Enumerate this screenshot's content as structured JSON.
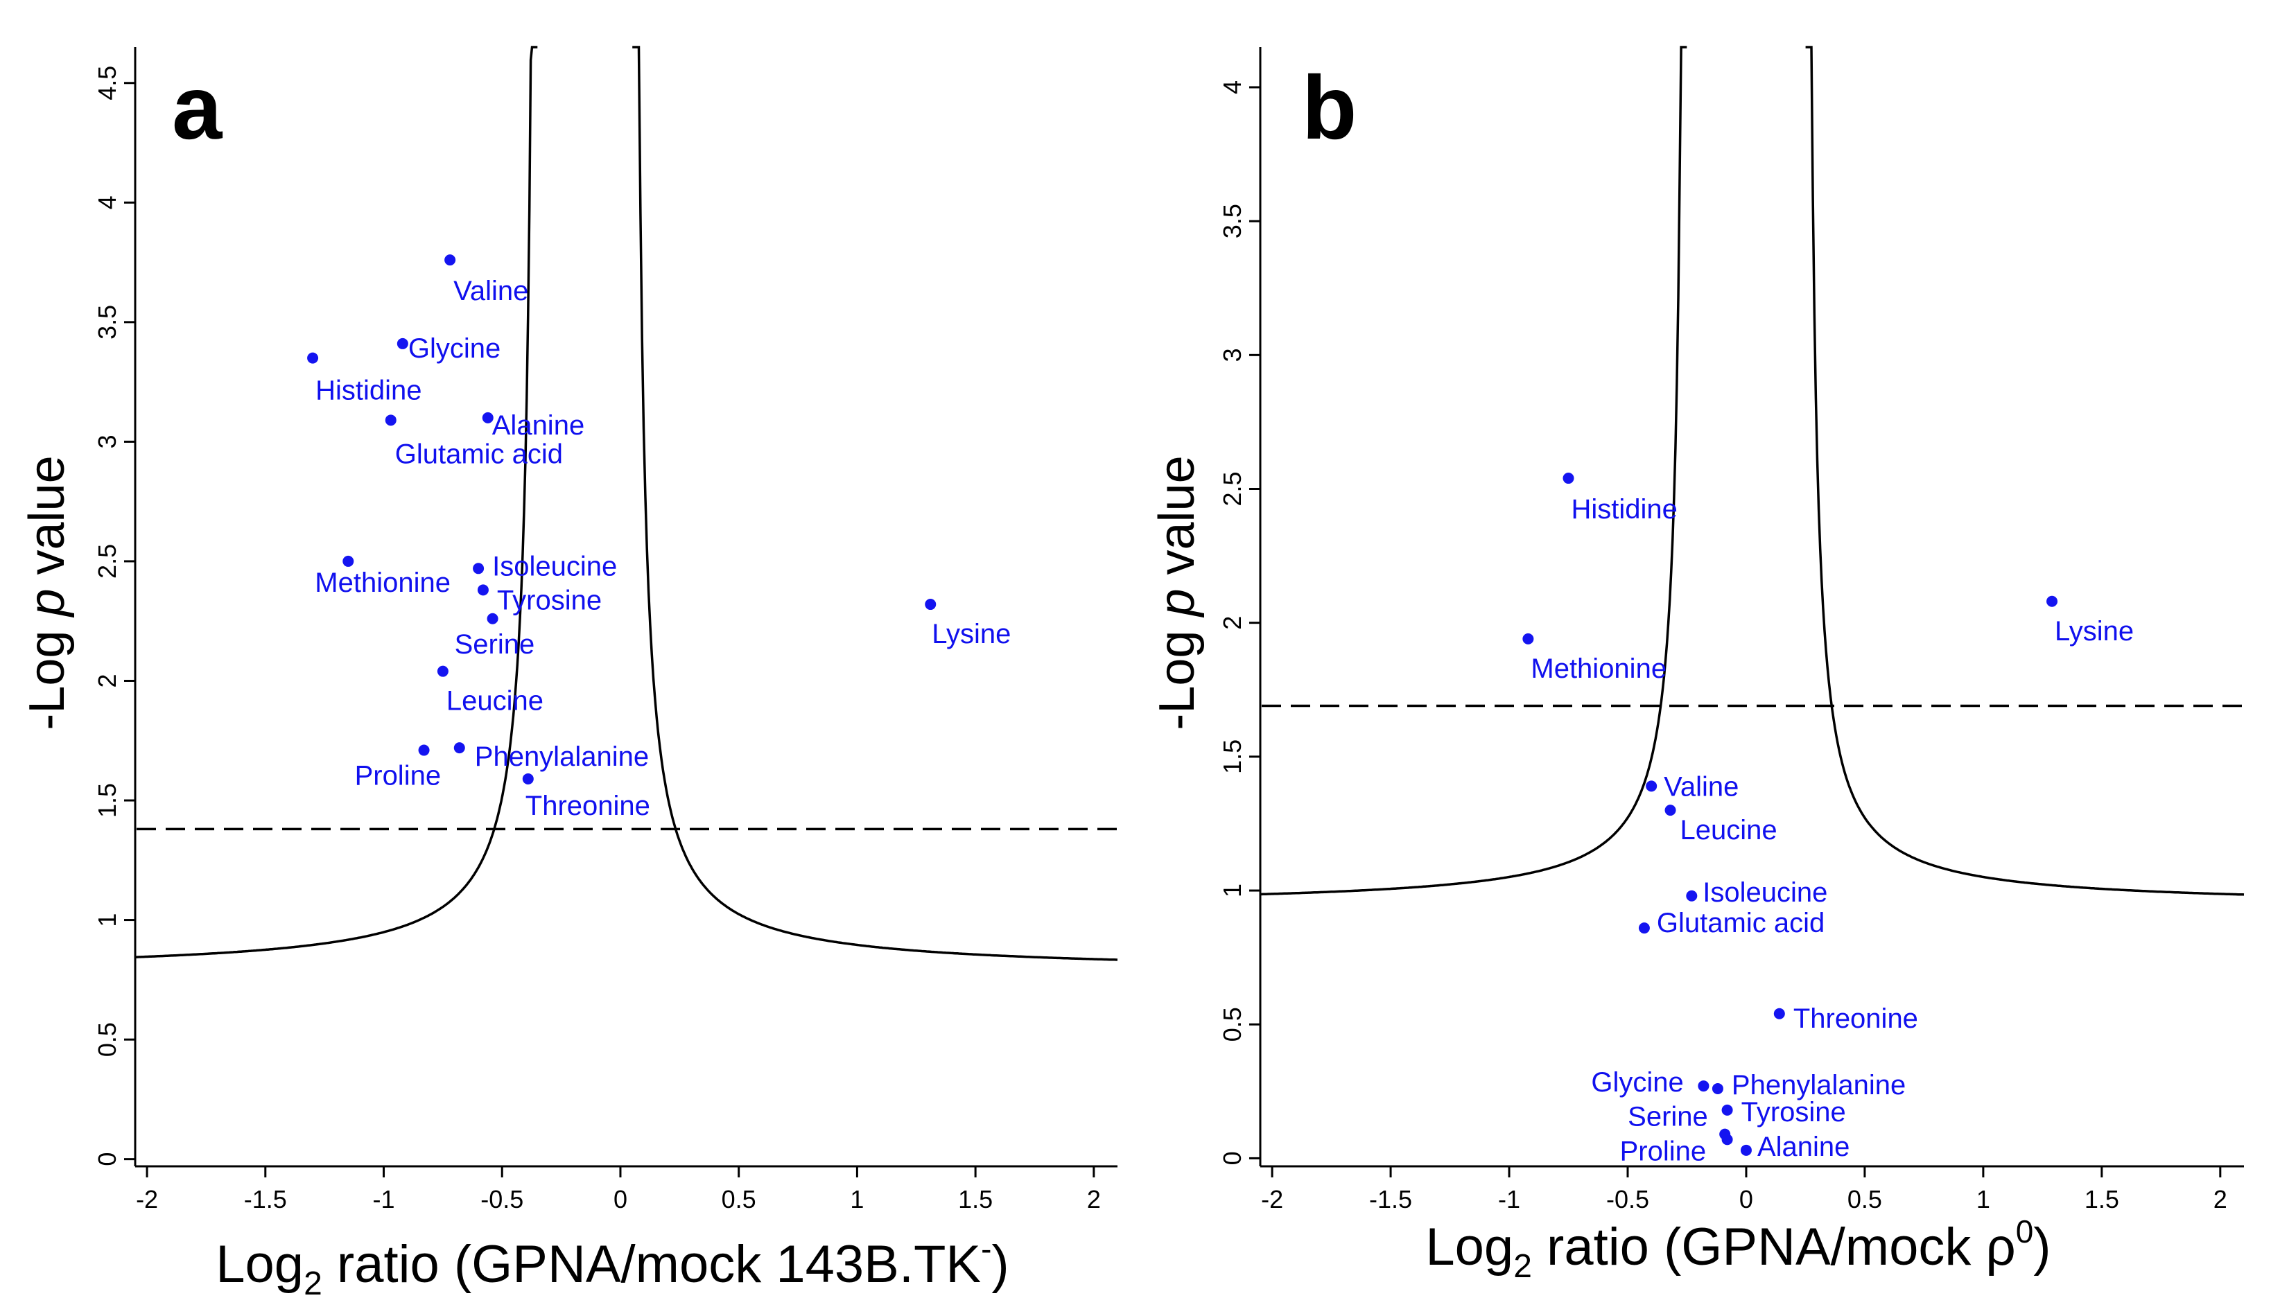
{
  "colors": {
    "points": "#1414f0",
    "axes": "#000000",
    "curve": "#000000",
    "threshold": "#000000"
  },
  "chart_data": [
    {
      "type": "scatter",
      "panel_label": "a",
      "xlabel": {
        "pre": "Log",
        "sub": "2",
        "post": " ratio (GPNA/mock 143B.TK",
        "sup": "-",
        "end": ")"
      },
      "ylabel": {
        "pre": "-Log ",
        "italic": "p",
        "post": " value"
      },
      "xlim": [
        -2.05,
        2.1
      ],
      "ylim": [
        -0.03,
        4.65
      ],
      "xticks": [
        -2,
        -1.5,
        -1,
        -0.5,
        0,
        0.5,
        1,
        1.5,
        2
      ],
      "xtick_labels": [
        "-2",
        "-1.5",
        "-1",
        "-0.5",
        "0",
        "0.5",
        "1",
        "1.5",
        "2"
      ],
      "yticks": [
        0,
        0.5,
        1,
        1.5,
        2,
        2.5,
        3,
        3.5,
        4,
        4.5
      ],
      "ytick_labels": [
        "0",
        "0.5",
        "1",
        "1.5",
        "2",
        "2.5",
        "3",
        "3.5",
        "4",
        "4.5"
      ],
      "threshold_y": 1.38,
      "curve": {
        "center": -0.15,
        "asymptote_y": 0.78,
        "k": 0.11,
        "halfwidth": 0.2
      },
      "points": [
        {
          "name": "Valine",
          "x": -0.72,
          "y": 3.76
        },
        {
          "name": "Glycine",
          "x": -0.92,
          "y": 3.41
        },
        {
          "name": "Histidine",
          "x": -1.3,
          "y": 3.35
        },
        {
          "name": "Alanine",
          "x": -0.56,
          "y": 3.1
        },
        {
          "name": "Glutamic acid",
          "x": -0.97,
          "y": 3.09
        },
        {
          "name": "Methionine",
          "x": -1.15,
          "y": 2.5
        },
        {
          "name": "Isoleucine",
          "x": -0.6,
          "y": 2.47
        },
        {
          "name": "Tyrosine",
          "x": -0.58,
          "y": 2.38
        },
        {
          "name": "Serine",
          "x": -0.54,
          "y": 2.26
        },
        {
          "name": "Leucine",
          "x": -0.75,
          "y": 2.04
        },
        {
          "name": "Lysine",
          "x": 1.31,
          "y": 2.32
        },
        {
          "name": "Proline",
          "x": -0.83,
          "y": 1.71
        },
        {
          "name": "Phenylalanine",
          "x": -0.68,
          "y": 1.72
        },
        {
          "name": "Threonine",
          "x": -0.39,
          "y": 1.59
        }
      ]
    },
    {
      "type": "scatter",
      "panel_label": "b",
      "xlabel": {
        "pre": "Log",
        "sub": "2",
        "post": " ratio (GPNA/mock ρ",
        "sup": "0",
        "end": ")"
      },
      "ylabel": {
        "pre": "-Log ",
        "italic": "p",
        "post": " value"
      },
      "xlim": [
        -2.05,
        2.1
      ],
      "ylim": [
        -0.03,
        4.15
      ],
      "xticks": [
        -2,
        -1.5,
        -1,
        -0.5,
        0,
        0.5,
        1,
        1.5,
        2
      ],
      "xtick_labels": [
        "-2",
        "-1.5",
        "-1",
        "-0.5",
        "0",
        "0.5",
        "1",
        "1.5",
        "2"
      ],
      "yticks": [
        0,
        0.5,
        1,
        1.5,
        2,
        2.5,
        3,
        3.5,
        4
      ],
      "ytick_labels": [
        "0",
        "0.5",
        "1",
        "1.5",
        "2",
        "2.5",
        "3",
        "3.5",
        "4"
      ],
      "threshold_y": 1.69,
      "curve": {
        "center": 0.0,
        "asymptote_y": 0.94,
        "k": 0.083,
        "halfwidth": 0.25
      },
      "points": [
        {
          "name": "Histidine",
          "x": -0.75,
          "y": 2.54
        },
        {
          "name": "Lysine",
          "x": 1.29,
          "y": 2.08
        },
        {
          "name": "Methionine",
          "x": -0.92,
          "y": 1.94
        },
        {
          "name": "Valine",
          "x": -0.4,
          "y": 1.39
        },
        {
          "name": "Leucine",
          "x": -0.32,
          "y": 1.3
        },
        {
          "name": "Isoleucine",
          "x": -0.23,
          "y": 0.98
        },
        {
          "name": "Glutamic acid",
          "x": -0.43,
          "y": 0.86
        },
        {
          "name": "Threonine",
          "x": 0.14,
          "y": 0.54
        },
        {
          "name": "Glycine",
          "x": -0.18,
          "y": 0.27
        },
        {
          "name": "Phenylalanine",
          "x": -0.12,
          "y": 0.26
        },
        {
          "name": "Tyrosine",
          "x": -0.08,
          "y": 0.18
        },
        {
          "name": "Serine",
          "x": -0.09,
          "y": 0.09
        },
        {
          "name": "Proline",
          "x": -0.08,
          "y": 0.07
        },
        {
          "name": "Alanine",
          "x": 0.0,
          "y": 0.03
        }
      ]
    }
  ]
}
